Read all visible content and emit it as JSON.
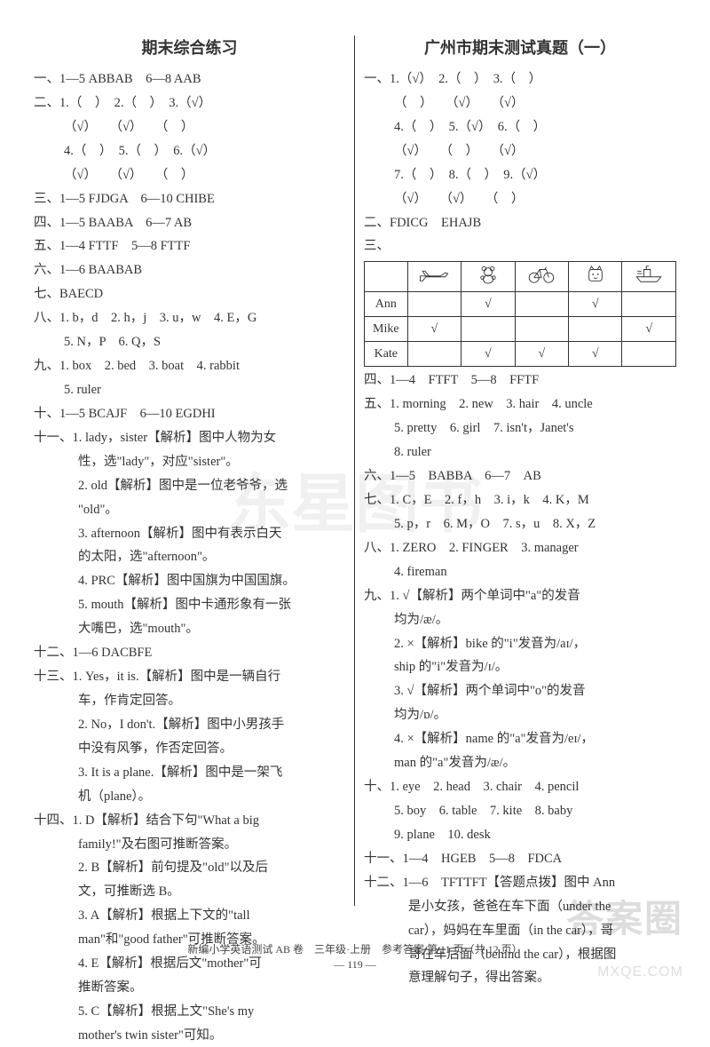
{
  "left": {
    "title": "期末综合练习",
    "lines": [
      {
        "t": "一、1—5 ABBAB　6—8 AAB",
        "cls": ""
      },
      {
        "t": "二、1.（　）　2.（　）　3.（√）",
        "cls": ""
      },
      {
        "t": "（√）　　（√）　　（　）",
        "cls": "indent1"
      },
      {
        "t": "4.（　）　5.（　）　6.（√）",
        "cls": "indent1"
      },
      {
        "t": "（√）　　（√）　　（　）",
        "cls": "indent1"
      },
      {
        "t": "三、1—5 FJDGA　6—10 CHIBE",
        "cls": ""
      },
      {
        "t": "四、1—5 BAABA　6—7 AB",
        "cls": ""
      },
      {
        "t": "五、1—4 FTTF　5—8 FTTF",
        "cls": ""
      },
      {
        "t": "六、1—6 BAABAB",
        "cls": ""
      },
      {
        "t": "七、BAECD",
        "cls": ""
      },
      {
        "t": "八、1.  b，d　2.  h，j　3.  u，w　4.  E，G",
        "cls": ""
      },
      {
        "t": "5.  N，P　6.  Q，S",
        "cls": "indent1"
      },
      {
        "t": "九、1.  box　2.  bed　3.  boat　4.  rabbit",
        "cls": ""
      },
      {
        "t": "5.  ruler",
        "cls": "indent1"
      },
      {
        "t": "十、1—5 BCAJF　6—10 EGDHI",
        "cls": ""
      },
      {
        "t": "十一、1.  lady，sister【解析】图中人物为女",
        "cls": ""
      },
      {
        "t": "性，选\"lady\"，对应\"sister\"。",
        "cls": "indent2"
      },
      {
        "t": "2.  old【解析】图中是一位老爷爷，选",
        "cls": "indent2"
      },
      {
        "t": "\"old\"。",
        "cls": "indent2"
      },
      {
        "t": "3.  afternoon【解析】图中有表示白天",
        "cls": "indent2"
      },
      {
        "t": "的太阳，选\"afternoon\"。",
        "cls": "indent2"
      },
      {
        "t": "4.  PRC【解析】图中国旗为中国国旗。",
        "cls": "indent2"
      },
      {
        "t": "5.  mouth【解析】图中卡通形象有一张",
        "cls": "indent2"
      },
      {
        "t": "大嘴巴，选\"mouth\"。",
        "cls": "indent2"
      },
      {
        "t": "十二、1—6 DACBFE",
        "cls": ""
      },
      {
        "t": "十三、1.  Yes，it is.【解析】图中是一辆自行",
        "cls": ""
      },
      {
        "t": "车，作肯定回答。",
        "cls": "indent2"
      },
      {
        "t": "2.  No，I don't.【解析】图中小男孩手",
        "cls": "indent2"
      },
      {
        "t": "中没有风筝，作否定回答。",
        "cls": "indent2"
      },
      {
        "t": "3.  It is a plane.【解析】图中是一架飞",
        "cls": "indent2"
      },
      {
        "t": "机（plane）。",
        "cls": "indent2"
      },
      {
        "t": "十四、1.  D【解析】结合下句\"What a big",
        "cls": ""
      },
      {
        "t": "family!\"及右图可推断答案。",
        "cls": "indent2"
      },
      {
        "t": "2.  B【解析】前句提及\"old\"以及后",
        "cls": "indent2"
      },
      {
        "t": "文，可推断选 B。",
        "cls": "indent2"
      },
      {
        "t": "3.  A【解析】根据上下文的\"tall",
        "cls": "indent2"
      },
      {
        "t": "man\"和\"good father\"可推断答案。",
        "cls": "indent2"
      },
      {
        "t": "4.  E【解析】根据后文\"mother\"可",
        "cls": "indent2"
      },
      {
        "t": "推断答案。",
        "cls": "indent2"
      },
      {
        "t": "5.  C【解析】根据上文\"She's my",
        "cls": "indent2"
      },
      {
        "t": "mother's twin sister\"可知。",
        "cls": "indent2"
      }
    ]
  },
  "right": {
    "title": "广州市期末测试真题（一）",
    "lines_top": [
      {
        "t": "一、1.（√）　2.（　）　3.（　）",
        "cls": ""
      },
      {
        "t": "（　）　　（√）　　（√）",
        "cls": "indent1"
      },
      {
        "t": "4.（　）　5.（√）　6.（　）",
        "cls": "indent1"
      },
      {
        "t": "（√）　　（　）　　（√）",
        "cls": "indent1"
      },
      {
        "t": "7.（　）　8.（　）　9.（√）",
        "cls": "indent1"
      },
      {
        "t": "（√）　　（√）　　（　）",
        "cls": "indent1"
      },
      {
        "t": "二、FDICG　EHAJB",
        "cls": ""
      },
      {
        "t": "三、",
        "cls": ""
      }
    ],
    "table": {
      "headers": [
        "",
        "plane",
        "teddy",
        "bike",
        "cat",
        "ship"
      ],
      "rows": [
        {
          "name": "Ann",
          "cells": [
            "",
            "√",
            "",
            "√",
            ""
          ]
        },
        {
          "name": "Mike",
          "cells": [
            "√",
            "",
            "",
            "",
            "√"
          ]
        },
        {
          "name": "Kate",
          "cells": [
            "",
            "√",
            "√",
            "√",
            ""
          ]
        }
      ]
    },
    "lines_bottom": [
      {
        "t": "四、1—4　FTFT　5—8　FFTF",
        "cls": ""
      },
      {
        "t": "五、1.  morning　2.  new　3.  hair　4.  uncle",
        "cls": ""
      },
      {
        "t": "5.  pretty　6.  girl　7.  isn't，Janet's",
        "cls": "indent1"
      },
      {
        "t": "8.  ruler",
        "cls": "indent1"
      },
      {
        "t": "六、1—5　BABBA　6—7　AB",
        "cls": ""
      },
      {
        "t": "七、1.  C，E　2.  f，h　3.  i，k　4.  K，M",
        "cls": ""
      },
      {
        "t": "5.  p，r　6.  M，O　7.  s，u　8.  X，Z",
        "cls": "indent1"
      },
      {
        "t": "八、1.  ZERO　2.  FINGER　3.  manager",
        "cls": ""
      },
      {
        "t": "4.  fireman",
        "cls": "indent1"
      },
      {
        "t": "九、1.  √【解析】两个单词中\"a\"的发音",
        "cls": ""
      },
      {
        "t": "均为/æ/。",
        "cls": "indent1"
      },
      {
        "t": "2.  ×【解析】bike 的\"i\"发音为/aɪ/，",
        "cls": "indent1"
      },
      {
        "t": "ship 的\"i\"发音为/ɪ/。",
        "cls": "indent1"
      },
      {
        "t": "3.  √【解析】两个单词中\"o\"的发音",
        "cls": "indent1"
      },
      {
        "t": "均为/ɒ/。",
        "cls": "indent1"
      },
      {
        "t": "4.  ×【解析】name 的\"a\"发音为/eɪ/，",
        "cls": "indent1"
      },
      {
        "t": "man 的\"a\"发音为/æ/。",
        "cls": "indent1"
      },
      {
        "t": "十、1.  eye　2.  head　3.  chair　4.  pencil",
        "cls": ""
      },
      {
        "t": "5.  boy　6.  table　7.  kite　8.  baby",
        "cls": "indent1"
      },
      {
        "t": "9.  plane　10.  desk",
        "cls": "indent1"
      },
      {
        "t": "十一、1—4　HGEB　5—8　FDCA",
        "cls": ""
      },
      {
        "t": "十二、1—6　TFTTFT【答题点拨】图中 Ann",
        "cls": ""
      },
      {
        "t": "是小女孩，爸爸在车下面（under the",
        "cls": "indent2"
      },
      {
        "t": "car），妈妈在车里面（in the car），哥",
        "cls": "indent2"
      },
      {
        "t": "哥在车后面（behind the car），根据图",
        "cls": "indent2"
      },
      {
        "t": "意理解句子，得出答案。",
        "cls": "indent2"
      }
    ]
  },
  "footer": {
    "line1": "新编小学英语测试 AB 卷　三年级·上册　参考答案 第 11 页（共 12 页）",
    "line2": "— 119 —"
  },
  "watermarks": {
    "center": "东星图书",
    "br1": "答案圈",
    "br2": "MXQE.COM"
  }
}
